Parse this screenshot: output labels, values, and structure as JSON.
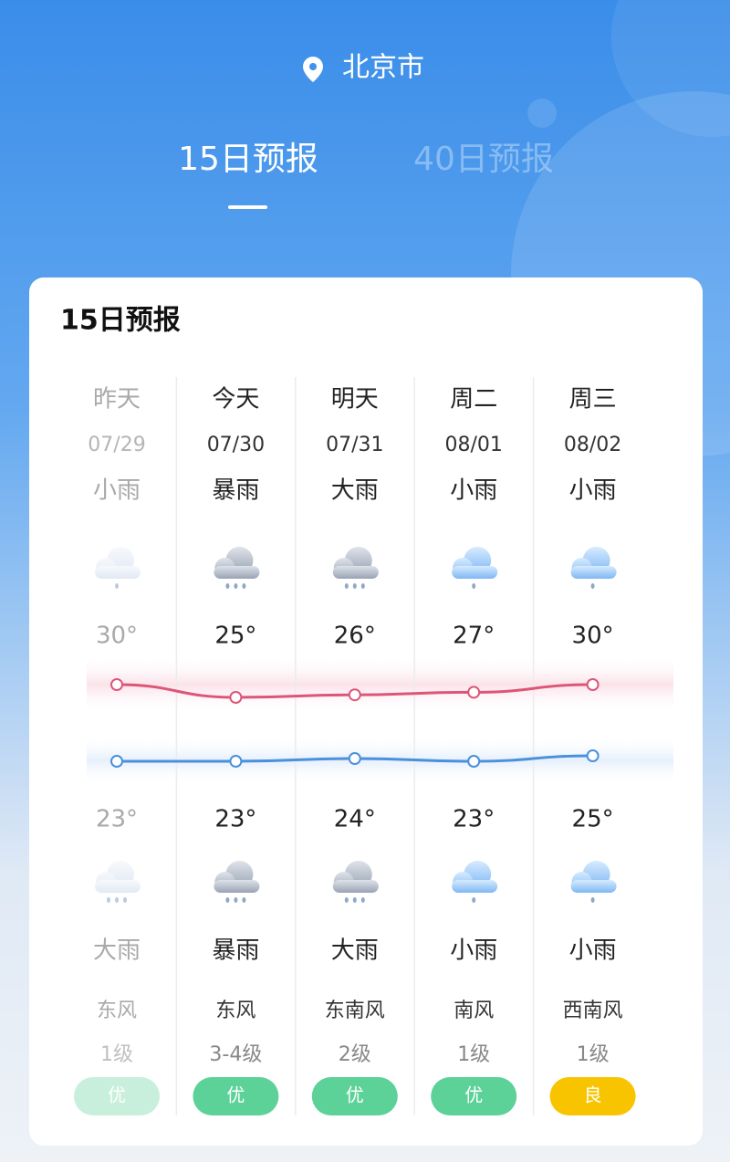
{
  "location": "北京市",
  "tabs": [
    "15日预报",
    "40日预报"
  ],
  "card_title": "15日预报",
  "days": [
    {
      "name": "昨天",
      "date": "07/29",
      "day_weather": "小雨",
      "high": {
        "value": 30,
        "label": "30°"
      },
      "low": {
        "value": 23,
        "label": "23°"
      },
      "night_weather": "大雨",
      "wind_dir": "东风",
      "wind_level": "1级",
      "aqi": "优"
    },
    {
      "name": "今天",
      "date": "07/30",
      "day_weather": "暴雨",
      "high": {
        "value": 25,
        "label": "25°"
      },
      "low": {
        "value": 23,
        "label": "23°"
      },
      "night_weather": "暴雨",
      "wind_dir": "东风",
      "wind_level": "3-4级",
      "aqi": "优"
    },
    {
      "name": "明天",
      "date": "07/31",
      "day_weather": "大雨",
      "high": {
        "value": 26,
        "label": "26°"
      },
      "low": {
        "value": 24,
        "label": "24°"
      },
      "night_weather": "大雨",
      "wind_dir": "东南风",
      "wind_level": "2级",
      "aqi": "优"
    },
    {
      "name": "周二",
      "date": "08/01",
      "day_weather": "小雨",
      "high": {
        "value": 27,
        "label": "27°"
      },
      "low": {
        "value": 23,
        "label": "23°"
      },
      "night_weather": "小雨",
      "wind_dir": "南风",
      "wind_level": "1级",
      "aqi": "优"
    },
    {
      "name": "周三",
      "date": "08/02",
      "day_weather": "小雨",
      "high": {
        "value": 30,
        "label": "30°"
      },
      "low": {
        "value": 25,
        "label": "25°"
      },
      "night_weather": "小雨",
      "wind_dir": "西南风",
      "wind_level": "1级",
      "aqi": "良"
    }
  ]
}
